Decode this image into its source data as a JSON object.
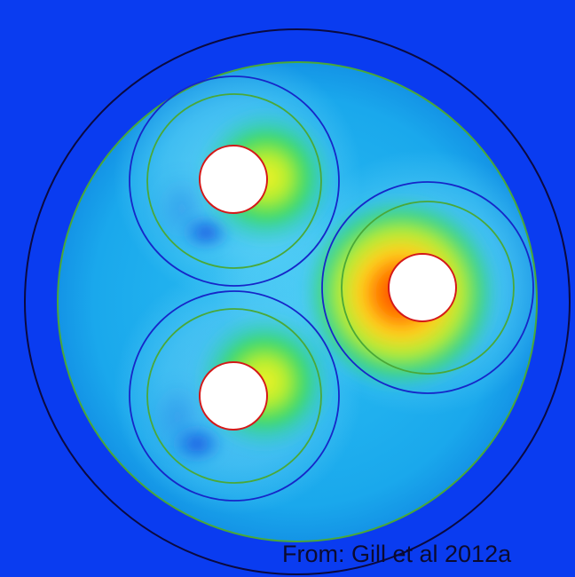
{
  "figure": {
    "caption": "From: Gill et al 2012a",
    "colors": {
      "outer_background": "#0a3cf0",
      "cable_field_base": "#18aeee",
      "cable_field_light": "#6ed8f8",
      "conductor_fill": "#ffffff",
      "conductor_outline": "#d41818",
      "insulation_ring": "#4aa838",
      "screen_ring": "#1626c8",
      "cable_sheath": "#0a0a40",
      "hot_zone": "#ff5000",
      "warm_zone": "#ffd21e",
      "mid_zone": "#3cdc5a",
      "cool_zone": "#1448e0"
    }
  }
}
